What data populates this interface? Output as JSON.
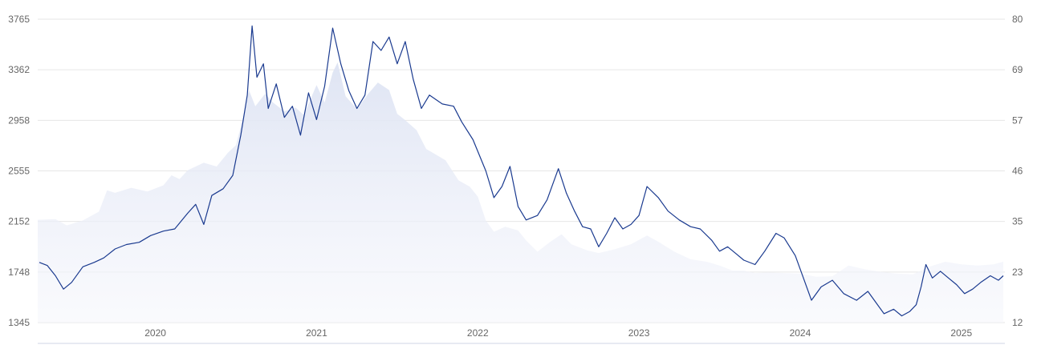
{
  "chart_data": {
    "type": "line",
    "title": "",
    "xlabel": "",
    "ylabel": "",
    "grid": true,
    "legend": "none",
    "x_ticks": [
      "2020",
      "2021",
      "2022",
      "2023",
      "2024",
      "2025"
    ],
    "y_left_ticks": [
      "3765",
      "3362",
      "2958",
      "2555",
      "2152",
      "1748",
      "1345"
    ],
    "y_right_ticks": [
      "80",
      "69",
      "57",
      "46",
      "35",
      "23",
      "12"
    ],
    "y_left_range": [
      1345,
      3765
    ],
    "y_right_range": [
      12,
      80
    ],
    "x_range": [
      2019.27,
      2025.27
    ],
    "colors": {
      "line": "#1a3a8f",
      "area": "#dfe4f3",
      "grid": "#e6e6e6",
      "axis_text": "#666666"
    },
    "series": [
      {
        "axis": "right",
        "style": "line",
        "points": [
          [
            2019.28,
            25.5
          ],
          [
            2019.33,
            24.8
          ],
          [
            2019.38,
            22.5
          ],
          [
            2019.43,
            19.5
          ],
          [
            2019.48,
            21.0
          ],
          [
            2019.55,
            24.5
          ],
          [
            2019.62,
            25.5
          ],
          [
            2019.68,
            26.5
          ],
          [
            2019.75,
            28.5
          ],
          [
            2019.82,
            29.5
          ],
          [
            2019.9,
            30.0
          ],
          [
            2019.97,
            31.5
          ],
          [
            2020.05,
            32.5
          ],
          [
            2020.12,
            33.0
          ],
          [
            2020.2,
            36.5
          ],
          [
            2020.25,
            38.5
          ],
          [
            2020.3,
            34.0
          ],
          [
            2020.35,
            40.5
          ],
          [
            2020.42,
            42.0
          ],
          [
            2020.48,
            45.0
          ],
          [
            2020.53,
            54.0
          ],
          [
            2020.57,
            63.0
          ],
          [
            2020.6,
            78.5
          ],
          [
            2020.63,
            67.0
          ],
          [
            2020.67,
            70.0
          ],
          [
            2020.7,
            60.0
          ],
          [
            2020.75,
            65.5
          ],
          [
            2020.8,
            58.0
          ],
          [
            2020.85,
            60.5
          ],
          [
            2020.9,
            54.0
          ],
          [
            2020.95,
            63.5
          ],
          [
            2021.0,
            57.5
          ],
          [
            2021.05,
            65.0
          ],
          [
            2021.1,
            78.0
          ],
          [
            2021.15,
            70.0
          ],
          [
            2021.2,
            64.0
          ],
          [
            2021.25,
            60.0
          ],
          [
            2021.3,
            63.0
          ],
          [
            2021.35,
            75.0
          ],
          [
            2021.4,
            73.0
          ],
          [
            2021.45,
            76.0
          ],
          [
            2021.5,
            70.0
          ],
          [
            2021.55,
            75.0
          ],
          [
            2021.6,
            66.5
          ],
          [
            2021.65,
            60.0
          ],
          [
            2021.7,
            63.0
          ],
          [
            2021.78,
            61.0
          ],
          [
            2021.85,
            60.5
          ],
          [
            2021.9,
            57.0
          ],
          [
            2021.97,
            53.0
          ],
          [
            2022.05,
            46.0
          ],
          [
            2022.1,
            40.0
          ],
          [
            2022.15,
            42.5
          ],
          [
            2022.2,
            47.0
          ],
          [
            2022.25,
            38.0
          ],
          [
            2022.3,
            35.0
          ],
          [
            2022.37,
            36.0
          ],
          [
            2022.43,
            39.5
          ],
          [
            2022.5,
            46.5
          ],
          [
            2022.55,
            41.0
          ],
          [
            2022.6,
            37.0
          ],
          [
            2022.65,
            33.5
          ],
          [
            2022.7,
            33.0
          ],
          [
            2022.75,
            29.0
          ],
          [
            2022.8,
            32.0
          ],
          [
            2022.85,
            35.5
          ],
          [
            2022.9,
            33.0
          ],
          [
            2022.95,
            34.0
          ],
          [
            2023.0,
            36.0
          ],
          [
            2023.05,
            42.5
          ],
          [
            2023.12,
            40.0
          ],
          [
            2023.18,
            37.0
          ],
          [
            2023.25,
            35.0
          ],
          [
            2023.32,
            33.5
          ],
          [
            2023.38,
            33.0
          ],
          [
            2023.45,
            30.5
          ],
          [
            2023.5,
            28.0
          ],
          [
            2023.55,
            29.0
          ],
          [
            2023.6,
            27.5
          ],
          [
            2023.65,
            26.0
          ],
          [
            2023.72,
            25.0
          ],
          [
            2023.78,
            28.0
          ],
          [
            2023.85,
            32.0
          ],
          [
            2023.9,
            31.0
          ],
          [
            2023.97,
            27.0
          ],
          [
            2024.02,
            22.0
          ],
          [
            2024.07,
            17.0
          ],
          [
            2024.13,
            20.0
          ],
          [
            2024.2,
            21.5
          ],
          [
            2024.27,
            18.5
          ],
          [
            2024.35,
            17.0
          ],
          [
            2024.42,
            19.0
          ],
          [
            2024.47,
            16.5
          ],
          [
            2024.52,
            14.0
          ],
          [
            2024.58,
            15.0
          ],
          [
            2024.63,
            13.5
          ],
          [
            2024.68,
            14.5
          ],
          [
            2024.72,
            16.0
          ],
          [
            2024.75,
            20.0
          ],
          [
            2024.78,
            25.0
          ],
          [
            2024.82,
            22.0
          ],
          [
            2024.87,
            23.5
          ],
          [
            2024.92,
            22.0
          ],
          [
            2024.97,
            20.5
          ],
          [
            2025.02,
            18.5
          ],
          [
            2025.07,
            19.5
          ],
          [
            2025.12,
            21.0
          ],
          [
            2025.18,
            22.5
          ],
          [
            2025.23,
            21.5
          ],
          [
            2025.26,
            22.5
          ]
        ]
      },
      {
        "axis": "left",
        "style": "area",
        "points": [
          [
            2019.27,
            2165
          ],
          [
            2019.38,
            2170
          ],
          [
            2019.45,
            2120
          ],
          [
            2019.55,
            2160
          ],
          [
            2019.65,
            2230
          ],
          [
            2019.7,
            2400
          ],
          [
            2019.75,
            2380
          ],
          [
            2019.85,
            2420
          ],
          [
            2019.95,
            2390
          ],
          [
            2020.05,
            2440
          ],
          [
            2020.1,
            2520
          ],
          [
            2020.15,
            2490
          ],
          [
            2020.2,
            2560
          ],
          [
            2020.3,
            2620
          ],
          [
            2020.38,
            2590
          ],
          [
            2020.45,
            2700
          ],
          [
            2020.5,
            2760
          ],
          [
            2020.55,
            3010
          ],
          [
            2020.58,
            3200
          ],
          [
            2020.62,
            3070
          ],
          [
            2020.68,
            3170
          ],
          [
            2020.73,
            3100
          ],
          [
            2020.8,
            3030
          ],
          [
            2020.87,
            3060
          ],
          [
            2020.92,
            3000
          ],
          [
            2021.0,
            3240
          ],
          [
            2021.05,
            3100
          ],
          [
            2021.1,
            3340
          ],
          [
            2021.13,
            3420
          ],
          [
            2021.18,
            3150
          ],
          [
            2021.25,
            3050
          ],
          [
            2021.32,
            3170
          ],
          [
            2021.38,
            3260
          ],
          [
            2021.45,
            3200
          ],
          [
            2021.5,
            3010
          ],
          [
            2021.55,
            2960
          ],
          [
            2021.62,
            2880
          ],
          [
            2021.68,
            2730
          ],
          [
            2021.72,
            2700
          ],
          [
            2021.8,
            2640
          ],
          [
            2021.88,
            2480
          ],
          [
            2021.95,
            2430
          ],
          [
            2022.0,
            2350
          ],
          [
            2022.05,
            2160
          ],
          [
            2022.1,
            2070
          ],
          [
            2022.17,
            2110
          ],
          [
            2022.25,
            2080
          ],
          [
            2022.3,
            2000
          ],
          [
            2022.37,
            1910
          ],
          [
            2022.45,
            1990
          ],
          [
            2022.52,
            2050
          ],
          [
            2022.58,
            1970
          ],
          [
            2022.68,
            1920
          ],
          [
            2022.75,
            1900
          ],
          [
            2022.85,
            1930
          ],
          [
            2022.95,
            1970
          ],
          [
            2023.05,
            2040
          ],
          [
            2023.12,
            1990
          ],
          [
            2023.22,
            1910
          ],
          [
            2023.32,
            1850
          ],
          [
            2023.42,
            1830
          ],
          [
            2023.5,
            1800
          ],
          [
            2023.58,
            1760
          ],
          [
            2023.65,
            1760
          ],
          [
            2023.72,
            1740
          ],
          [
            2023.8,
            1745
          ],
          [
            2023.9,
            1740
          ],
          [
            2024.0,
            1735
          ],
          [
            2024.1,
            1710
          ],
          [
            2024.2,
            1715
          ],
          [
            2024.3,
            1800
          ],
          [
            2024.4,
            1770
          ],
          [
            2024.5,
            1750
          ],
          [
            2024.6,
            1735
          ],
          [
            2024.7,
            1730
          ],
          [
            2024.8,
            1790
          ],
          [
            2024.9,
            1830
          ],
          [
            2025.0,
            1810
          ],
          [
            2025.1,
            1800
          ],
          [
            2025.2,
            1810
          ],
          [
            2025.26,
            1830
          ]
        ]
      }
    ]
  }
}
